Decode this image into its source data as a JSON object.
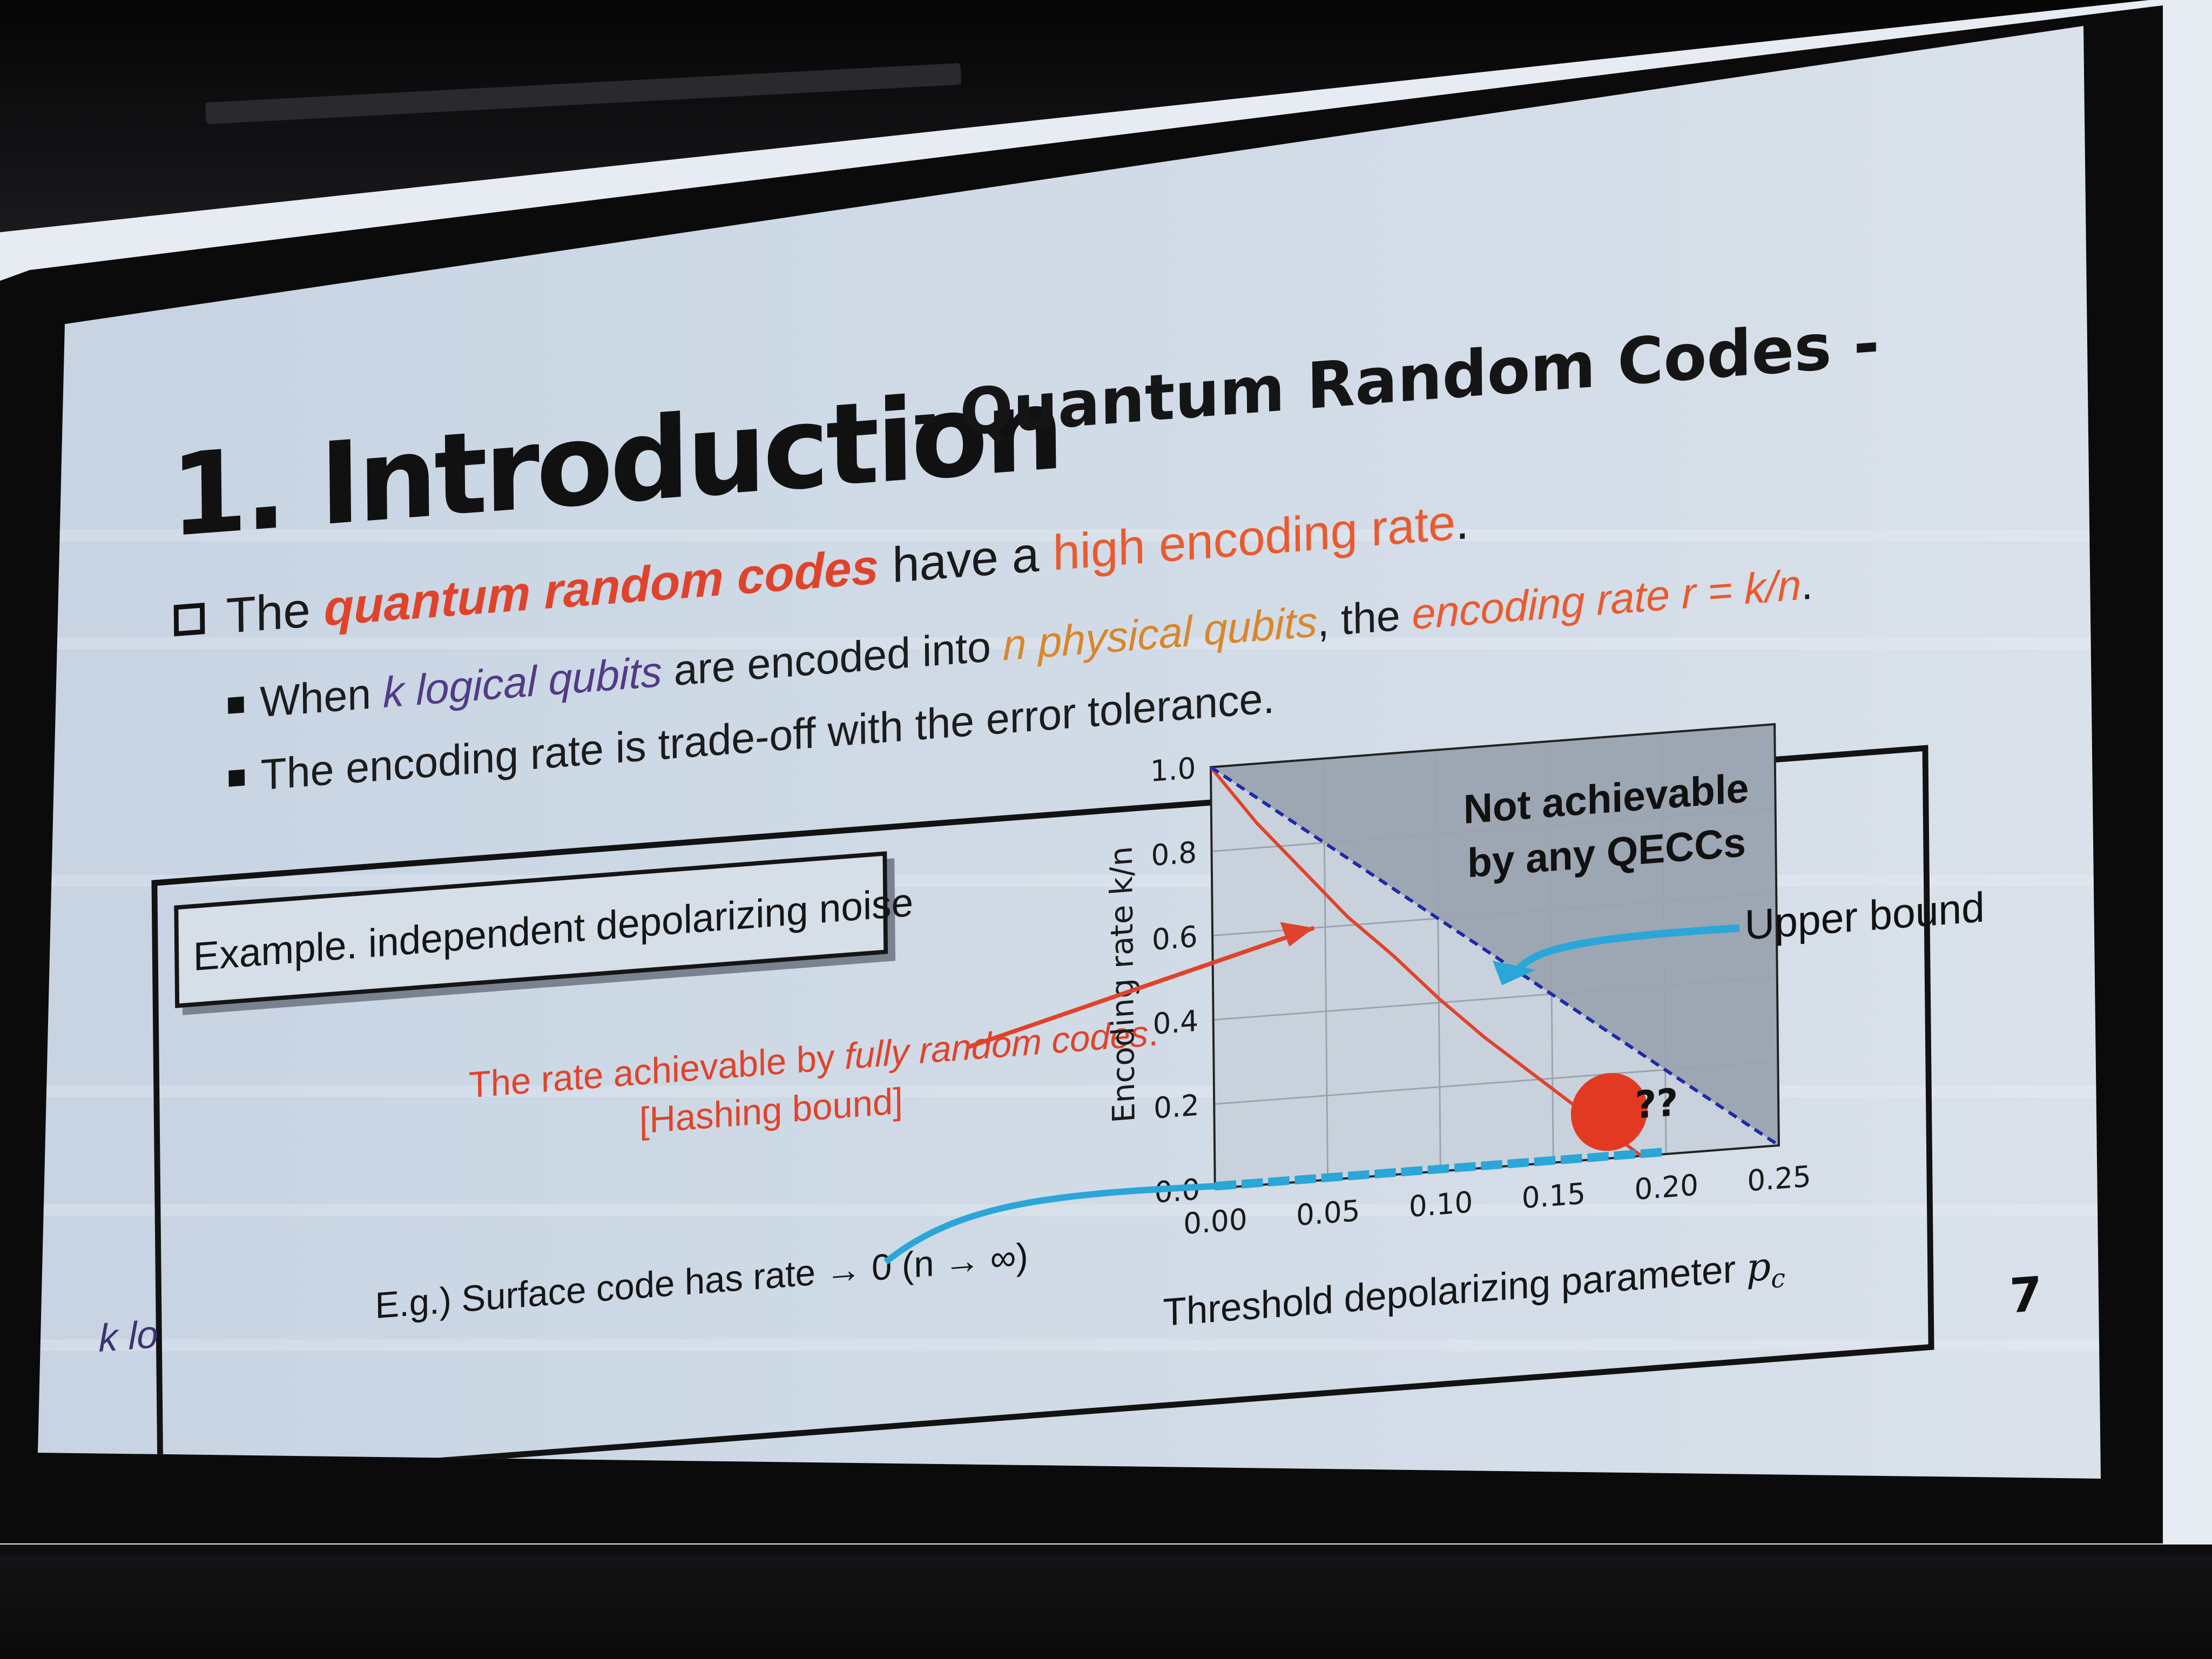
{
  "slide": {
    "title": "1. Introduction",
    "subtitle": "- Quantum Random Codes -",
    "bullet_main": {
      "pre": "The",
      "highlight1": "quantum random codes",
      "mid": "have a",
      "highlight2": "high encoding rate",
      "post": "."
    },
    "sub_bullet_1": {
      "pre": "When",
      "k_logical": "k logical qubits",
      "mid": "are encoded into",
      "n_physical": "n physical qubits",
      "comma": ", the",
      "rate_label": "encoding rate r = k/n",
      "post": "."
    },
    "sub_bullet_2": "The encoding rate is trade-off with the error tolerance.",
    "example_label": "Example. independent depolarizing noise",
    "hashing_label_1_pre": "The rate achievable by",
    "hashing_label_1_it": "fully random codes",
    "hashing_label_1_post": ".",
    "hashing_label_2": "[Hashing bound]",
    "surface_text": "E.g.) Surface code has rate → 0  (n → ∞)",
    "cut_text": "k lo",
    "page_number": "7"
  },
  "colors": {
    "accent_red": "#e0432b",
    "accent_orange": "#ea5a2e",
    "accent_amber": "#d9862a",
    "accent_purple": "#523b86",
    "upper_bound_blue": "#1e2aa8",
    "arrow_blue": "#2aa6d8"
  },
  "chart_data": {
    "type": "line",
    "xlabel_text": "Threshold depolarizing parameter",
    "xlabel_symbol": "p",
    "xlabel_subscript": "c",
    "ylabel": "Encoding rate k/n",
    "xlim": [
      0,
      0.25
    ],
    "ylim": [
      0,
      1.0
    ],
    "xticks": [
      "0.00",
      "0.05",
      "0.10",
      "0.15",
      "0.20",
      "0.25"
    ],
    "yticks": [
      "0.0",
      "0.2",
      "0.4",
      "0.6",
      "0.8",
      "1.0"
    ],
    "grid": true,
    "series": [
      {
        "style": "solid-red",
        "x": [
          0.0,
          0.02,
          0.04,
          0.06,
          0.08,
          0.1,
          0.12,
          0.14,
          0.16,
          0.18,
          0.189
        ],
        "y": [
          1.0,
          0.86,
          0.74,
          0.62,
          0.52,
          0.41,
          0.31,
          0.22,
          0.13,
          0.04,
          0.0
        ]
      },
      {
        "style": "dashed-blue",
        "x": [
          0.0,
          0.05,
          0.1,
          0.15,
          0.2,
          0.25
        ],
        "y": [
          1.0,
          0.8,
          0.6,
          0.4,
          0.2,
          0.0
        ]
      }
    ],
    "annotations": {
      "not_achievable_1": "Not achievable",
      "not_achievable_2": "by any QECCs",
      "upper_bound": "Upper bound",
      "question": "??"
    },
    "marker": {
      "x": 0.175,
      "y": 0.11
    }
  }
}
